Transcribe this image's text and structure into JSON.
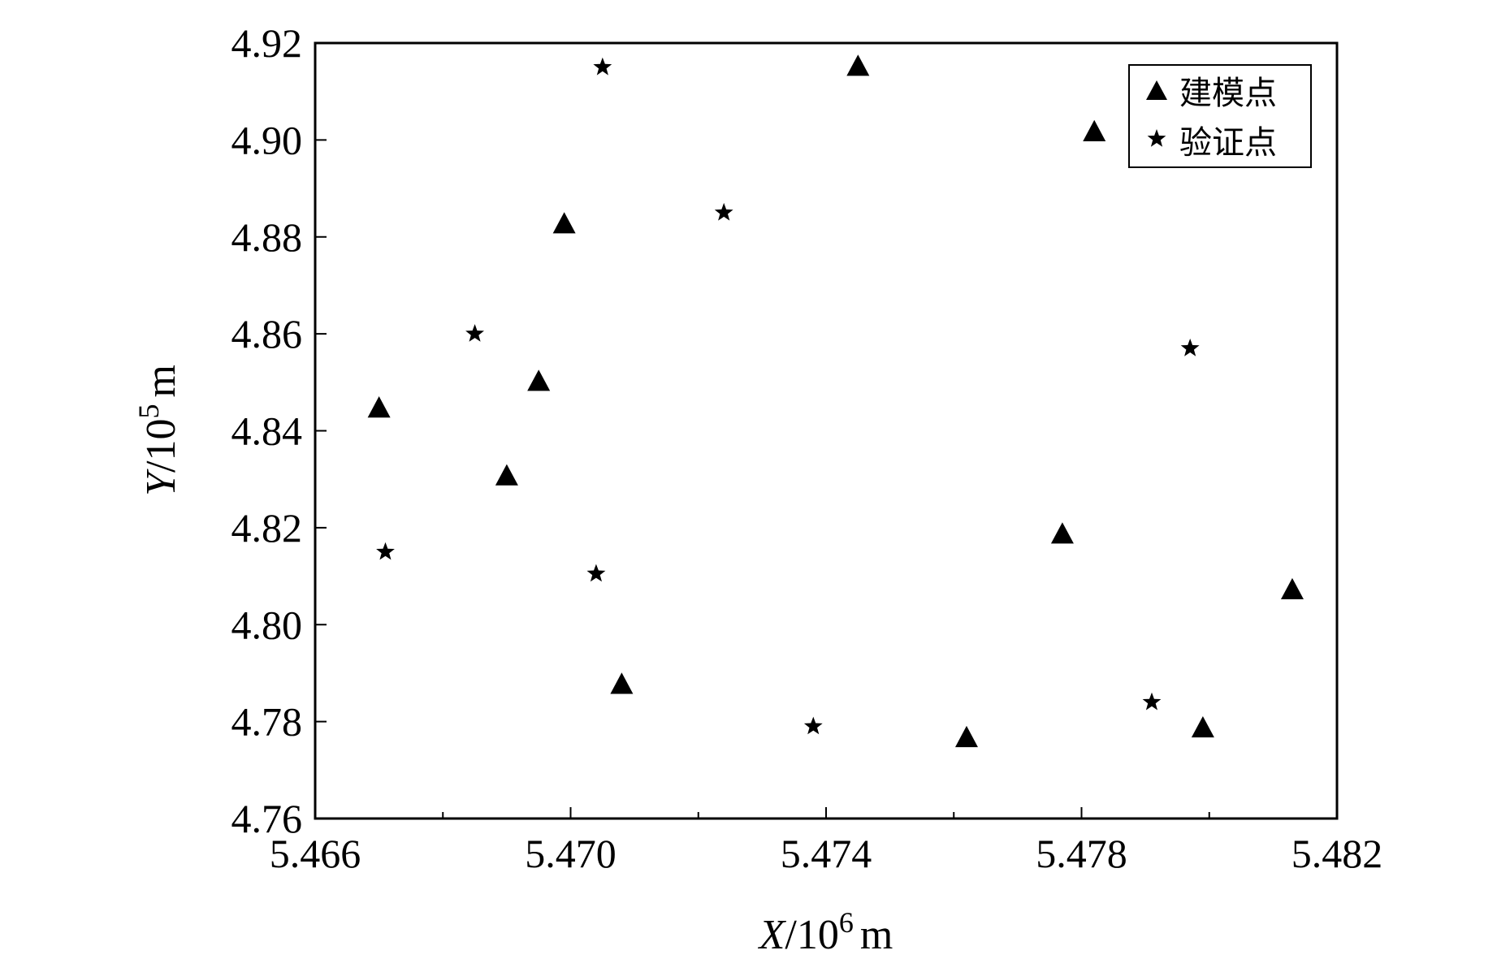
{
  "chart_data": {
    "type": "scatter",
    "x_axis": {
      "label_var": "X",
      "label_unit": "/10",
      "label_exp": "6",
      "label_suffix": "m",
      "range": [
        5.466,
        5.482
      ],
      "ticks": [
        "5.466",
        "5.470",
        "5.474",
        "5.478",
        "5.482"
      ],
      "tick_values": [
        5.466,
        5.47,
        5.474,
        5.478,
        5.482
      ],
      "minor_ticks": [
        5.468,
        5.472,
        5.476,
        5.48
      ]
    },
    "y_axis": {
      "label_var": "Y",
      "label_unit": "/10",
      "label_exp": "5",
      "label_suffix": "m",
      "range": [
        4.76,
        4.92
      ],
      "ticks": [
        "4.76",
        "4.78",
        "4.80",
        "4.82",
        "4.84",
        "4.86",
        "4.88",
        "4.90",
        "4.92"
      ],
      "tick_values": [
        4.76,
        4.78,
        4.8,
        4.82,
        4.84,
        4.86,
        4.88,
        4.9,
        4.92
      ]
    },
    "grid": false,
    "legend_position": "top-right",
    "series": [
      {
        "name": "建模点",
        "marker": "triangle",
        "color": "#000000",
        "points": [
          [
            5.467,
            4.8445
          ],
          [
            5.469,
            4.8305
          ],
          [
            5.4695,
            4.85
          ],
          [
            5.4699,
            4.8825
          ],
          [
            5.4708,
            4.7875
          ],
          [
            5.4745,
            4.915
          ],
          [
            5.4762,
            4.7765
          ],
          [
            5.4777,
            4.8185
          ],
          [
            5.4782,
            4.9015
          ],
          [
            5.4799,
            4.7785
          ],
          [
            5.4813,
            4.807
          ]
        ]
      },
      {
        "name": "验证点",
        "marker": "star",
        "color": "#000000",
        "points": [
          [
            5.4671,
            4.815
          ],
          [
            5.4685,
            4.86
          ],
          [
            5.4704,
            4.8105
          ],
          [
            5.4705,
            4.915
          ],
          [
            5.4724,
            4.885
          ],
          [
            5.4738,
            4.779
          ],
          [
            5.4791,
            4.784
          ],
          [
            5.4797,
            4.857
          ]
        ]
      }
    ]
  }
}
